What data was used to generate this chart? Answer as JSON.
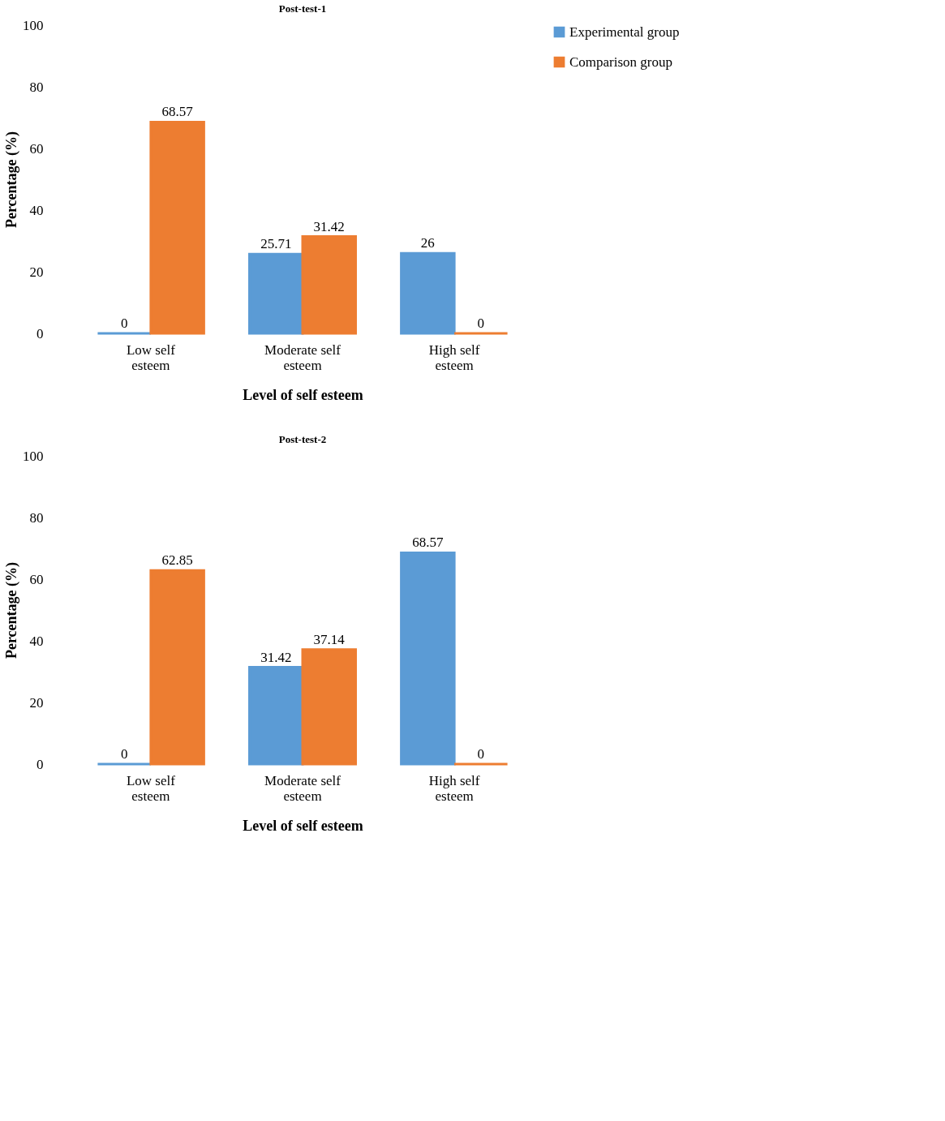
{
  "chart_data": [
    {
      "type": "bar",
      "title": "Post-test-1",
      "xlabel": "Level of self esteem",
      "ylabel": "Percentage (%)",
      "categories": [
        "Low self esteem",
        "Moderate self esteem",
        "High self esteem"
      ],
      "ylim": [
        0,
        100
      ],
      "yticks": [
        0,
        20,
        40,
        60,
        80,
        100
      ],
      "grid": false,
      "legend": "top right",
      "data_labels": true,
      "series": [
        {
          "name": "Experimental group",
          "color": "#5b9bd5",
          "values": [
            0,
            25.71,
            26
          ]
        },
        {
          "name": "Comparison group",
          "color": "#ed7d31",
          "values": [
            68.57,
            31.42,
            0
          ]
        }
      ]
    },
    {
      "type": "bar",
      "title": "Post-test-2",
      "xlabel": "Level of self esteem",
      "ylabel": "Percentage (%)",
      "categories": [
        "Low self esteem",
        "Moderate self esteem",
        "High self esteem"
      ],
      "ylim": [
        0,
        100
      ],
      "yticks": [
        0,
        20,
        40,
        60,
        80,
        100
      ],
      "grid": false,
      "legend": "top right",
      "data_labels": true,
      "series": [
        {
          "name": "Experimental group",
          "color": "#5b9bd5",
          "values": [
            0,
            31.42,
            68.57
          ]
        },
        {
          "name": "Comparison group",
          "color": "#ed7d31",
          "values": [
            62.85,
            37.14,
            0
          ]
        }
      ]
    }
  ]
}
